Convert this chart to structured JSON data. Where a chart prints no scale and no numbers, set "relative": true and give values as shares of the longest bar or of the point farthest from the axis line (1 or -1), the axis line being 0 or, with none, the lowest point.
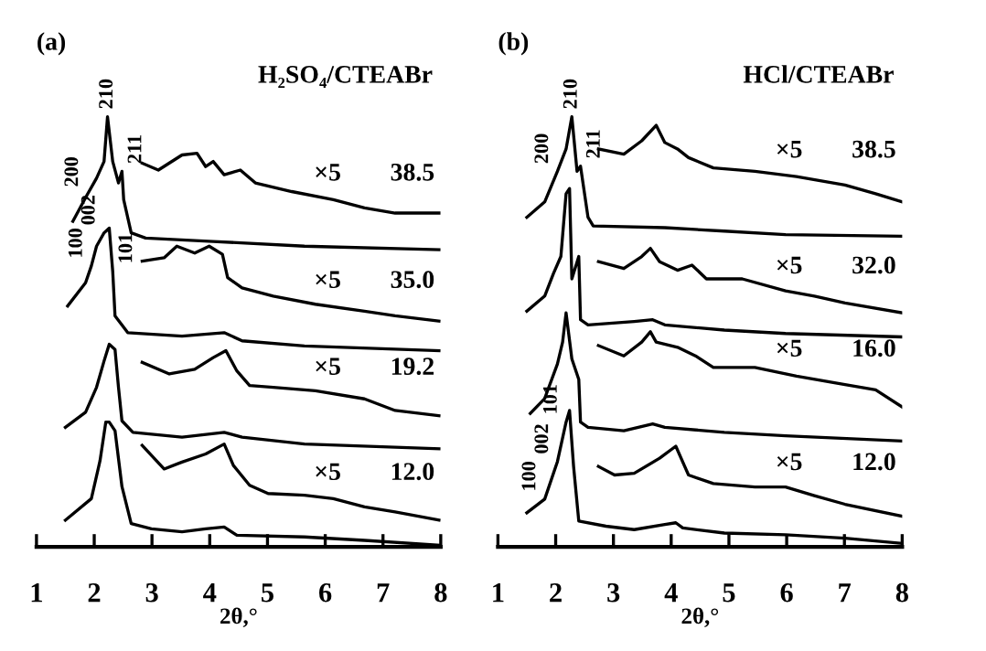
{
  "chart_data": [
    {
      "type": "line",
      "title": "(a)",
      "subtitle": "H₂SO₄/CTEABr",
      "xlabel": "2θ,°",
      "relative": true,
      "xlim": [
        1,
        8
      ],
      "xticks": [
        1,
        2,
        3,
        4,
        5,
        6,
        7,
        8
      ],
      "marker": "none",
      "line_style": "solid",
      "series": [
        {
          "color": "#000000",
          "x": [
            1.5,
            1.95,
            2.1,
            2.2,
            2.26,
            2.36,
            2.48,
            2.64,
            2.99,
            3.52,
            3.93,
            4.25,
            4.47,
            5.64,
            6.68,
            7.97
          ],
          "values": [
            0.062,
            0.112,
            0.2,
            0.29,
            0.29,
            0.27,
            0.14,
            0.054,
            0.042,
            0.035,
            0.042,
            0.046,
            0.027,
            0.023,
            0.015,
            0.004
          ]
        },
        {
          "color": "#000000",
          "x": [
            2.83,
            3.21,
            3.52,
            3.93,
            4.25,
            4.41,
            4.69,
            5.01,
            5.64,
            6.14,
            6.68,
            7.21,
            7.97
          ],
          "values": [
            0.236,
            0.181,
            0.197,
            0.216,
            0.239,
            0.189,
            0.143,
            0.124,
            0.12,
            0.112,
            0.093,
            0.081,
            0.062
          ]
        },
        {
          "color": "#000000",
          "x": [
            1.5,
            1.85,
            2.04,
            2.17,
            2.26,
            2.36,
            2.42,
            2.48,
            2.67,
            3.52,
            4.25,
            4.56,
            5.64,
            7.97
          ],
          "values": [
            0.278,
            0.313,
            0.371,
            0.432,
            0.471,
            0.459,
            0.371,
            0.293,
            0.266,
            0.255,
            0.266,
            0.255,
            0.239,
            0.228
          ]
        },
        {
          "color": "#000000",
          "x": [
            2.83,
            3.3,
            3.74,
            4.06,
            4.28,
            4.47,
            4.69,
            5.1,
            5.83,
            6.68,
            7.21,
            7.97
          ],
          "values": [
            0.429,
            0.402,
            0.413,
            0.44,
            0.456,
            0.409,
            0.375,
            0.371,
            0.363,
            0.344,
            0.317,
            0.305
          ]
        },
        {
          "color": "#000000",
          "x": [
            1.54,
            1.85,
            1.95,
            2.04,
            2.17,
            2.26,
            2.32,
            2.36,
            2.58,
            3.52,
            4.25,
            4.56,
            5.64,
            7.97
          ],
          "values": [
            0.56,
            0.614,
            0.653,
            0.699,
            0.73,
            0.741,
            0.641,
            0.537,
            0.498,
            0.49,
            0.498,
            0.479,
            0.467,
            0.456
          ]
        },
        {
          "color": "#000000",
          "x": [
            2.83,
            3.21,
            3.43,
            3.74,
            3.99,
            4.22,
            4.31,
            4.56,
            5.1,
            5.83,
            6.68,
            7.21,
            7.97
          ],
          "values": [
            0.664,
            0.672,
            0.699,
            0.683,
            0.699,
            0.68,
            0.626,
            0.602,
            0.583,
            0.564,
            0.548,
            0.537,
            0.525
          ]
        },
        {
          "color": "#000000",
          "x": [
            1.63,
            1.88,
            2.04,
            2.17,
            2.23,
            2.32,
            2.42,
            2.48,
            2.51,
            2.64,
            2.89,
            4.06,
            5.64,
            7.97
          ],
          "values": [
            0.757,
            0.819,
            0.857,
            0.896,
            1.0,
            0.896,
            0.846,
            0.873,
            0.807,
            0.73,
            0.718,
            0.71,
            0.699,
            0.691
          ]
        },
        {
          "color": "#000000",
          "x": [
            2.83,
            3.11,
            3.52,
            3.78,
            3.93,
            4.06,
            4.25,
            4.53,
            4.79,
            5.42,
            6.14,
            6.68,
            7.21,
            7.97
          ],
          "values": [
            0.892,
            0.876,
            0.911,
            0.915,
            0.884,
            0.896,
            0.865,
            0.876,
            0.846,
            0.826,
            0.807,
            0.788,
            0.776,
            0.776
          ]
        }
      ],
      "annotations": [
        "×5",
        "38.5",
        "×5",
        "35.0",
        "×5",
        "19.2",
        "×5",
        "12.0",
        {
          "text": "200",
          "x": 1.88,
          "y": 0.819
        },
        {
          "text": "210",
          "x": 2.23,
          "y": 1.0
        },
        {
          "text": "211",
          "x": 2.48,
          "y": 0.873
        },
        {
          "text": "100",
          "x": 1.95,
          "y": 0.653
        },
        {
          "text": "002",
          "x": 2.17,
          "y": 0.73
        },
        {
          "text": "101",
          "x": 2.32,
          "y": 0.641
        }
      ]
    },
    {
      "type": "line",
      "title": "(b)",
      "subtitle": "HCl/CTEABr",
      "xlabel": "2θ,°",
      "relative": true,
      "xlim": [
        1,
        8
      ],
      "xticks": [
        1,
        2,
        3,
        4,
        5,
        6,
        7,
        8
      ],
      "marker": "none",
      "line_style": "solid",
      "series": [
        {
          "color": "#000000",
          "x": [
            1.5,
            1.81,
            2.03,
            2.18,
            2.24,
            2.31,
            2.4,
            2.87,
            3.36,
            3.89,
            4.08,
            4.2,
            4.92,
            5.98,
            7.01,
            8.0
          ],
          "values": [
            0.079,
            0.111,
            0.198,
            0.29,
            0.317,
            0.187,
            0.06,
            0.048,
            0.04,
            0.052,
            0.056,
            0.044,
            0.032,
            0.028,
            0.02,
            0.008
          ]
        },
        {
          "color": "#000000",
          "x": [
            2.74,
            3.02,
            3.36,
            3.8,
            4.08,
            4.3,
            4.73,
            5.45,
            5.98,
            6.48,
            7.01,
            8.0
          ],
          "values": [
            0.187,
            0.167,
            0.171,
            0.206,
            0.234,
            0.167,
            0.147,
            0.139,
            0.139,
            0.119,
            0.099,
            0.071
          ]
        },
        {
          "color": "#000000",
          "x": [
            1.56,
            1.81,
            2.03,
            2.12,
            2.18,
            2.28,
            2.4,
            2.43,
            2.56,
            3.18,
            3.68,
            3.89,
            4.92,
            5.98,
            8.0
          ],
          "values": [
            0.31,
            0.345,
            0.425,
            0.476,
            0.544,
            0.437,
            0.389,
            0.29,
            0.278,
            0.27,
            0.286,
            0.278,
            0.266,
            0.258,
            0.246
          ]
        },
        {
          "color": "#000000",
          "x": [
            2.74,
            3.18,
            3.49,
            3.64,
            3.74,
            4.11,
            4.42,
            4.73,
            5.45,
            6.17,
            7.01,
            7.54,
            8.0
          ],
          "values": [
            0.468,
            0.444,
            0.476,
            0.5,
            0.476,
            0.464,
            0.444,
            0.417,
            0.417,
            0.397,
            0.377,
            0.365,
            0.325
          ]
        },
        {
          "color": "#000000",
          "x": [
            1.5,
            1.81,
            1.96,
            2.09,
            2.18,
            2.24,
            2.28,
            2.4,
            2.43,
            2.56,
            3.36,
            3.68,
            3.89,
            4.92,
            5.98,
            8.0
          ],
          "values": [
            0.548,
            0.583,
            0.635,
            0.675,
            0.821,
            0.833,
            0.623,
            0.675,
            0.528,
            0.516,
            0.524,
            0.528,
            0.516,
            0.504,
            0.496,
            0.488
          ]
        },
        {
          "color": "#000000",
          "x": [
            2.74,
            3.18,
            3.49,
            3.64,
            3.8,
            4.11,
            4.36,
            4.61,
            5.23,
            5.98,
            6.48,
            7.01,
            8.0
          ],
          "values": [
            0.663,
            0.647,
            0.675,
            0.694,
            0.663,
            0.643,
            0.655,
            0.623,
            0.623,
            0.595,
            0.583,
            0.567,
            0.544
          ]
        },
        {
          "color": "#000000",
          "x": [
            1.5,
            1.81,
            2.03,
            2.18,
            2.28,
            2.37,
            2.43,
            2.56,
            2.65,
            3.89,
            4.92,
            5.98,
            8.0
          ],
          "values": [
            0.766,
            0.802,
            0.873,
            0.925,
            1.0,
            0.873,
            0.885,
            0.766,
            0.746,
            0.742,
            0.734,
            0.726,
            0.722
          ]
        },
        {
          "color": "#000000",
          "x": [
            2.74,
            3.18,
            3.49,
            3.74,
            3.89,
            4.11,
            4.3,
            4.73,
            5.45,
            6.17,
            7.01,
            7.54,
            8.0
          ],
          "values": [
            0.925,
            0.913,
            0.944,
            0.98,
            0.94,
            0.925,
            0.905,
            0.881,
            0.873,
            0.861,
            0.841,
            0.821,
            0.802
          ]
        }
      ],
      "annotations": [
        "×5",
        "38.5",
        "×5",
        "32.0",
        "×5",
        "16.0",
        "×5",
        "12.0",
        {
          "text": "200",
          "x": 2.03,
          "y": 0.873
        },
        {
          "text": "210",
          "x": 2.28,
          "y": 1.0
        },
        {
          "text": "211",
          "x": 2.43,
          "y": 0.885
        },
        {
          "text": "100",
          "x": 1.81,
          "y": 0.111
        },
        {
          "text": "002",
          "x": 2.03,
          "y": 0.198
        },
        {
          "text": "101",
          "x": 2.18,
          "y": 0.29
        }
      ]
    }
  ]
}
